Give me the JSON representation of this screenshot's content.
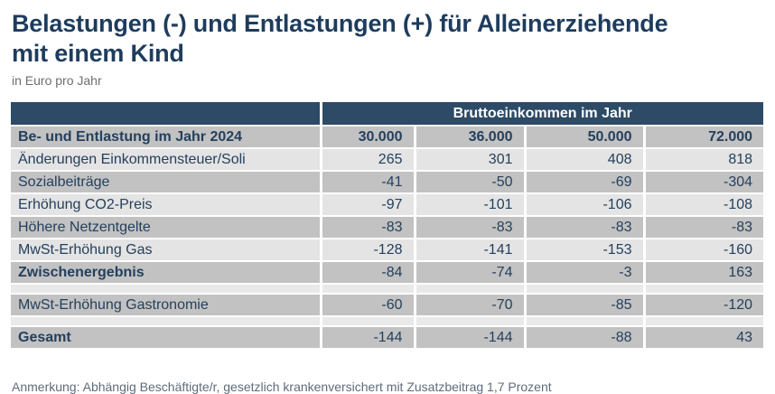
{
  "title_lines": [
    "Belastungen (-) und Entlastungen (+) für Alleinerziehende",
    "mit einem Kind"
  ],
  "subtitle": "in Euro pro Jahr",
  "table": {
    "group_header": "Bruttoeinkommen im Jahr",
    "columns": [
      "Be- und Entlastung im Jahr 2024",
      "30.000",
      "36.000",
      "50.000",
      "72.000"
    ],
    "rows": [
      {
        "type": "data",
        "shade": "light",
        "bold": false,
        "label": "Änderungen Einkommensteuer/Soli",
        "values": [
          "265",
          "301",
          "408",
          "818"
        ]
      },
      {
        "type": "data",
        "shade": "dark",
        "bold": false,
        "label": "Sozialbeiträge",
        "values": [
          "-41",
          "-50",
          "-69",
          "-304"
        ]
      },
      {
        "type": "data",
        "shade": "light",
        "bold": false,
        "label": "Erhöhung CO2-Preis",
        "values": [
          "-97",
          "-101",
          "-106",
          "-108"
        ]
      },
      {
        "type": "data",
        "shade": "dark",
        "bold": false,
        "label": "Höhere Netzentgelte",
        "values": [
          "-83",
          "-83",
          "-83",
          "-83"
        ]
      },
      {
        "type": "data",
        "shade": "light",
        "bold": false,
        "label": "MwSt-Erhöhung Gas",
        "values": [
          "-128",
          "-141",
          "-153",
          "-160"
        ]
      },
      {
        "type": "data",
        "shade": "dark",
        "bold": true,
        "label": "Zwischenergebnis",
        "values": [
          "-84",
          "-74",
          "-3",
          "163"
        ]
      },
      {
        "type": "spacer"
      },
      {
        "type": "data",
        "shade": "dark",
        "bold": false,
        "label": "MwSt-Erhöhung Gastronomie",
        "values": [
          "-60",
          "-70",
          "-85",
          "-120"
        ]
      },
      {
        "type": "spacer"
      },
      {
        "type": "data",
        "shade": "dark",
        "bold": true,
        "label": "Gesamt",
        "values": [
          "-144",
          "-144",
          "-88",
          "43"
        ]
      }
    ]
  },
  "footnote": "Anmerkung: Abhängig Beschäftigte/r, gesetzlich krankenversichert mit Zusatzbeitrag 1,7 Prozent",
  "colors": {
    "header_navy": "#2d4a66",
    "row_dark_gray": "#c2c2c2",
    "row_light_gray": "#e4e4e4",
    "spacer_gray": "#e9e9e9",
    "text_navy": "#24405d",
    "title_navy": "#1e3c5d",
    "subtitle_gray": "#6e6e6e",
    "footnote_gray": "#5e6c7b"
  },
  "chart_data": {
    "type": "table",
    "title": "Belastungen (-) und Entlastungen (+) für Alleinerziehende mit einem Kind",
    "subtitle": "in Euro pro Jahr",
    "column_group_label": "Bruttoeinkommen im Jahr",
    "row_header": "Be- und Entlastung im Jahr 2024",
    "categories": [
      "30.000",
      "36.000",
      "50.000",
      "72.000"
    ],
    "series": [
      {
        "name": "Änderungen Einkommensteuer/Soli",
        "values": [
          265,
          301,
          408,
          818
        ]
      },
      {
        "name": "Sozialbeiträge",
        "values": [
          -41,
          -50,
          -69,
          -304
        ]
      },
      {
        "name": "Erhöhung CO2-Preis",
        "values": [
          -97,
          -101,
          -106,
          -108
        ]
      },
      {
        "name": "Höhere Netzentgelte",
        "values": [
          -83,
          -83,
          -83,
          -83
        ]
      },
      {
        "name": "MwSt-Erhöhung Gas",
        "values": [
          -128,
          -141,
          -153,
          -160
        ]
      },
      {
        "name": "Zwischenergebnis",
        "values": [
          -84,
          -74,
          -3,
          163
        ]
      },
      {
        "name": "MwSt-Erhöhung Gastronomie",
        "values": [
          -60,
          -70,
          -85,
          -120
        ]
      },
      {
        "name": "Gesamt",
        "values": [
          -144,
          -144,
          -88,
          43
        ]
      }
    ]
  }
}
